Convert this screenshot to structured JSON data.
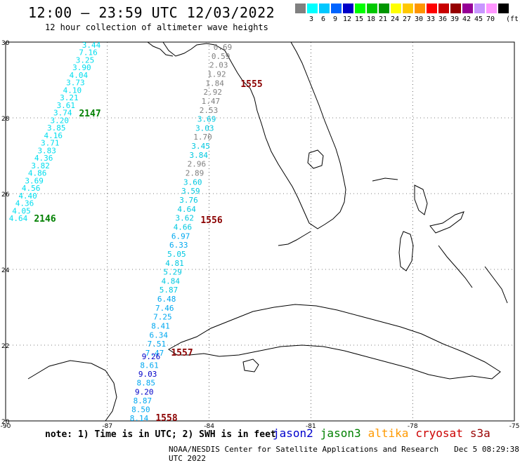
{
  "header": {
    "title": "12:00 – 23:59 UTC 12/03/2022",
    "subtitle": "12 hour collection of altimeter wave heights"
  },
  "legend": {
    "unit": "(ft)",
    "items": [
      {
        "label": "",
        "color": "#808080"
      },
      {
        "label": "3",
        "color": "#00ffff"
      },
      {
        "label": "6",
        "color": "#00c8ff"
      },
      {
        "label": "9",
        "color": "#0064ff"
      },
      {
        "label": "12",
        "color": "#0000c8"
      },
      {
        "label": "15",
        "color": "#00ff00"
      },
      {
        "label": "18",
        "color": "#00c800"
      },
      {
        "label": "21",
        "color": "#009600"
      },
      {
        "label": "24",
        "color": "#ffff00"
      },
      {
        "label": "27",
        "color": "#ffc800"
      },
      {
        "label": "30",
        "color": "#ff9600"
      },
      {
        "label": "33",
        "color": "#ff0000"
      },
      {
        "label": "36",
        "color": "#c80000"
      },
      {
        "label": "39",
        "color": "#960000"
      },
      {
        "label": "42",
        "color": "#960096"
      },
      {
        "label": "45",
        "color": "#c896ff"
      },
      {
        "label": "70",
        "color": "#ff96ff"
      },
      {
        "label": "",
        "color": "#000000"
      }
    ]
  },
  "axes": {
    "lon_labels": [
      "-90",
      "-87",
      "-84",
      "-81",
      "-78",
      "-75"
    ],
    "lat_labels": [
      "30",
      "28",
      "26",
      "24",
      "22",
      "20"
    ]
  },
  "track_west": {
    "color": "#00ddee",
    "values": [
      "3.44",
      "7.16",
      "3.25",
      "3.90",
      "4.04",
      "3.73",
      "4.10",
      "3.21",
      "3.61",
      "3.74",
      "3.20",
      "3.85",
      "4.16",
      "3.71",
      "3.83",
      "4.36",
      "3.82",
      "4.86",
      "3.69",
      "4.56",
      "4.40",
      "4.36",
      "4.05",
      "4.64"
    ]
  },
  "track_east_north": {
    "values": [
      "0.69",
      "0.59",
      "2.03",
      "1.92",
      "1.84",
      "2.92",
      "1.47",
      "2.53",
      "3.69",
      "3.03",
      "1.70",
      "3.45",
      "3.84",
      "2.96",
      "2.89",
      "3.60",
      "3.59",
      "3.76",
      "4.64",
      "3.62",
      "4.66",
      "6.97",
      "6.33",
      "5.05",
      "4.81",
      "5.29",
      "4.84",
      "5.87",
      "6.48",
      "7.46",
      "7.25",
      "8.41",
      "6.34",
      "7.51",
      "7.47"
    ]
  },
  "track_east_south": {
    "values": [
      "9.26",
      "8.61",
      "9.03",
      "8.85",
      "9.20",
      "8.87",
      "8.50",
      "8.14"
    ]
  },
  "pass_labels": [
    {
      "text": "1555",
      "color": "#8b0000"
    },
    {
      "text": "2147",
      "color": "#008000"
    },
    {
      "text": "2146",
      "color": "#008000"
    },
    {
      "text": "1556",
      "color": "#8b0000"
    },
    {
      "text": "1557",
      "color": "#8b0000"
    },
    {
      "text": "1558",
      "color": "#8b0000"
    }
  ],
  "note": "note: 1) Time is in UTC; 2) SWH is in feet",
  "satellites": [
    {
      "name": "jason2",
      "color": "#0000cc"
    },
    {
      "name": "jason3",
      "color": "#008000"
    },
    {
      "name": "altika",
      "color": "#ff9900"
    },
    {
      "name": "cryosat",
      "color": "#cc0000"
    },
    {
      "name": "s3a",
      "color": "#990000"
    }
  ],
  "footer": {
    "credit": "NOAA/NESDIS Center for Satellite Applications and Research",
    "timestamp": "Dec  5 08:29:38 UTC 2022"
  }
}
